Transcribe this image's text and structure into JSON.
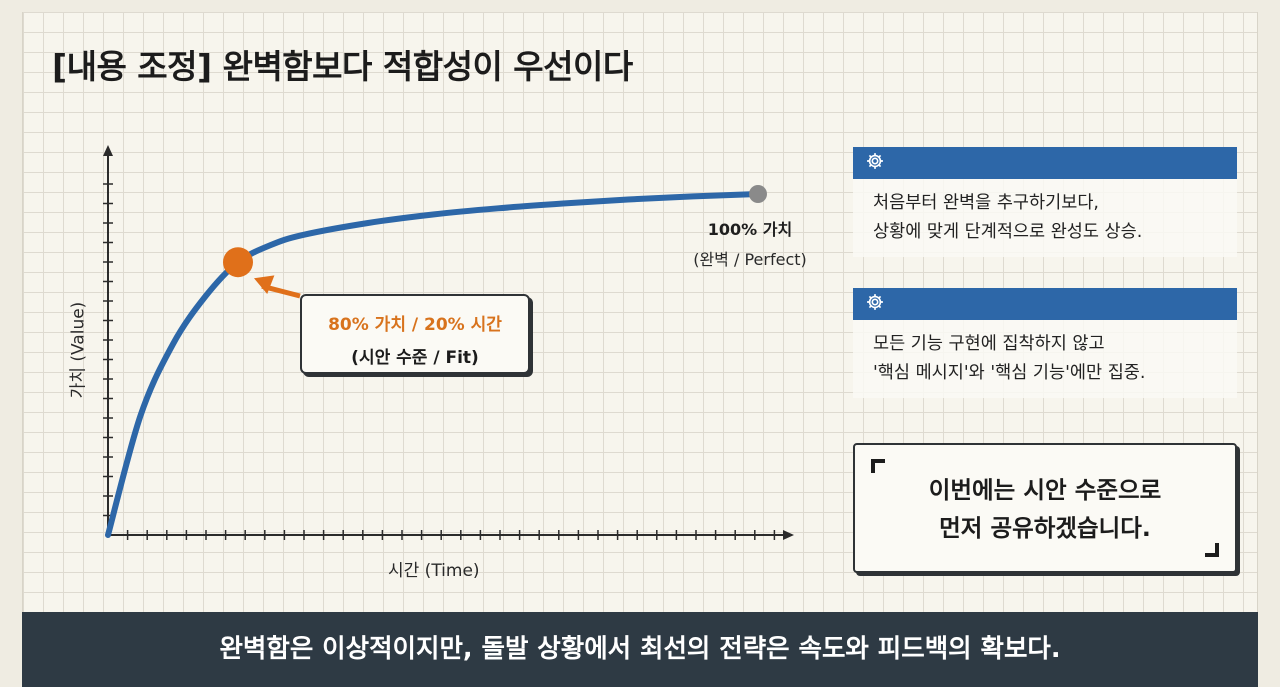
{
  "title": "[내용 조정] 완벽함보다 적합성이 우선이다",
  "chart": {
    "x_axis_label": "시간 (Time)",
    "y_axis_label": "가치 (Value)",
    "fit_point": {
      "line1": "80% 가치 / 20% 시간",
      "line2": "(시안 수준 / Fit)"
    },
    "end_point": {
      "line1": "100% 가치",
      "line2": "(완벽 / Perfect)"
    },
    "colors": {
      "curve": "#2d67a8",
      "fit_marker": "#e0701a",
      "end_marker": "#8a8a8a",
      "axis": "#2b2b2b"
    }
  },
  "chart_data": {
    "type": "line",
    "x": [
      0,
      0.05,
      0.1,
      0.15,
      0.2,
      0.25,
      0.3,
      0.4,
      0.5,
      0.6,
      0.7,
      0.8,
      0.9,
      1.0
    ],
    "y": [
      0,
      0.35,
      0.56,
      0.7,
      0.8,
      0.85,
      0.88,
      0.915,
      0.94,
      0.958,
      0.972,
      0.984,
      0.993,
      1.0
    ],
    "highlight_points": [
      {
        "x": 0.2,
        "y": 0.8,
        "label": "80% 가치 / 20% 시간"
      },
      {
        "x": 1.0,
        "y": 1.0,
        "label": "100% 가치"
      }
    ],
    "xlabel": "시간 (Time)",
    "ylabel": "가치 (Value)",
    "grid": true
  },
  "cards": [
    {
      "icon": "gear-icon",
      "lines": [
        "처음부터 완벽을 추구하기보다,",
        "상황에 맞게 단계적으로 완성도 상승."
      ]
    },
    {
      "icon": "gear-icon",
      "lines": [
        "모든 기능 구현에 집착하지 않고",
        "'핵심 메시지'와 '핵심 기능'에만 집중."
      ]
    }
  ],
  "quote": {
    "lines": [
      "이번에는 시안 수준으로",
      "먼저 공유하겠습니다."
    ]
  },
  "footer": "완벽함은 이상적이지만, 돌발 상황에서 최선의 전략은 속도와 피드백의 확보다."
}
